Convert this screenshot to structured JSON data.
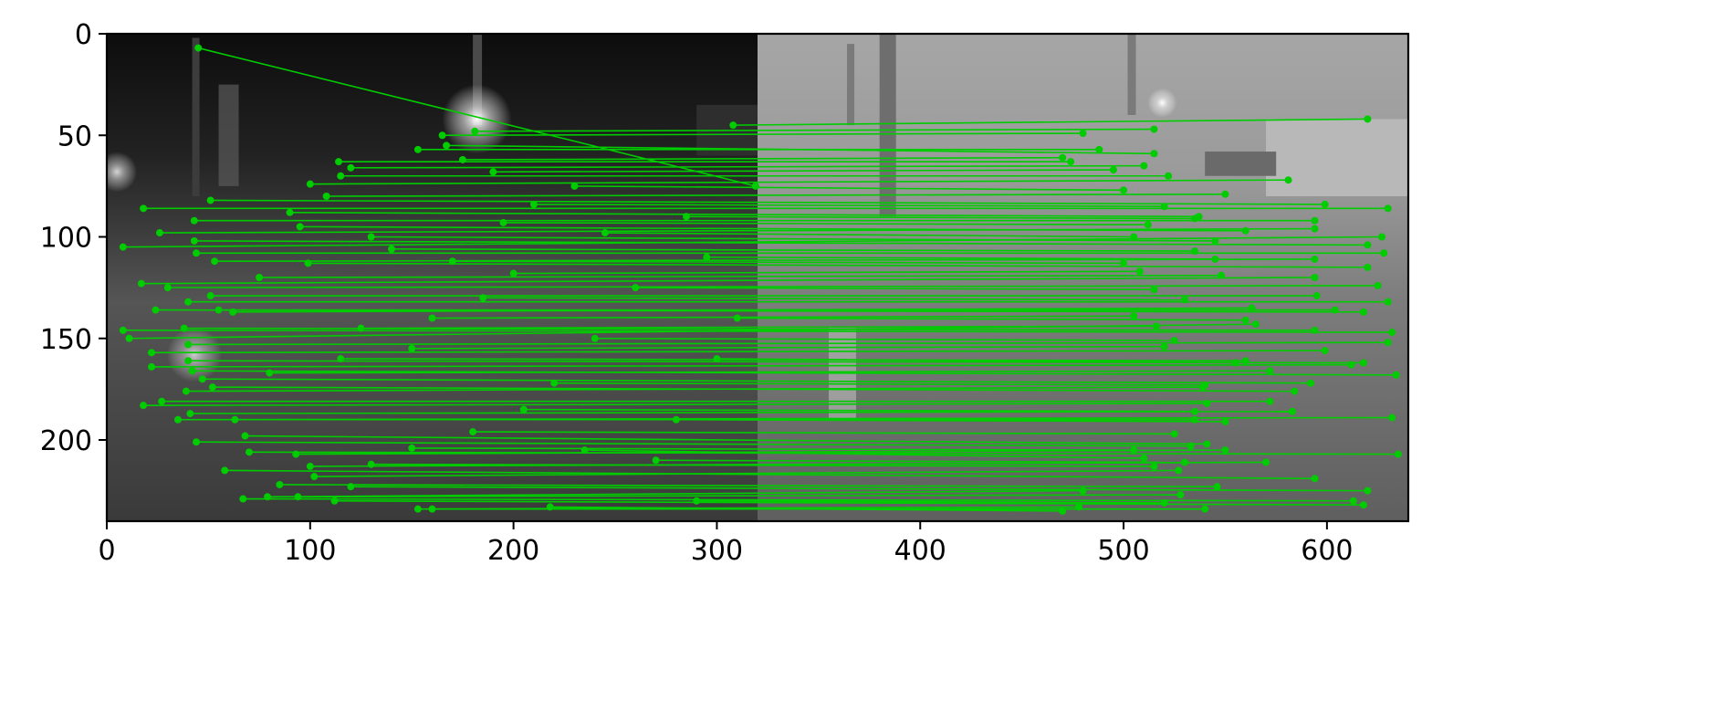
{
  "chart_data": {
    "type": "scatter",
    "title": "",
    "xlabel": "",
    "ylabel": "",
    "xlim": [
      0,
      640
    ],
    "ylim": [
      240,
      0
    ],
    "x_ticks": [
      0,
      100,
      200,
      300,
      400,
      500,
      600
    ],
    "y_ticks": [
      0,
      50,
      100,
      150,
      200
    ],
    "grid": false,
    "legend": "none",
    "background_image": {
      "description": "two grayscale construction-site photos placed side by side; left half dark night scene, right half bright daytime scene",
      "left_panel_x": [
        0,
        320
      ],
      "right_panel_x": [
        320,
        640
      ]
    },
    "match_color": "#00cc00",
    "series": [
      {
        "values": [
          {
            "x1": 45,
            "y1": 7,
            "x2": 319,
            "y2": 75
          },
          {
            "x1": 181,
            "y1": 48,
            "x2": 515,
            "y2": 47
          },
          {
            "x1": 308,
            "y1": 45,
            "x2": 620,
            "y2": 42
          },
          {
            "x1": 165,
            "y1": 50,
            "x2": 480,
            "y2": 49
          },
          {
            "x1": 153,
            "y1": 57,
            "x2": 488,
            "y2": 57
          },
          {
            "x1": 167,
            "y1": 55,
            "x2": 515,
            "y2": 59
          },
          {
            "x1": 114,
            "y1": 63,
            "x2": 474,
            "y2": 63
          },
          {
            "x1": 120,
            "y1": 66,
            "x2": 510,
            "y2": 65
          },
          {
            "x1": 115,
            "y1": 70,
            "x2": 522,
            "y2": 70
          },
          {
            "x1": 100,
            "y1": 74,
            "x2": 581,
            "y2": 72
          },
          {
            "x1": 108,
            "y1": 80,
            "x2": 550,
            "y2": 79
          },
          {
            "x1": 51,
            "y1": 82,
            "x2": 599,
            "y2": 84
          },
          {
            "x1": 18,
            "y1": 86,
            "x2": 630,
            "y2": 86
          },
          {
            "x1": 43,
            "y1": 92,
            "x2": 594,
            "y2": 92
          },
          {
            "x1": 26,
            "y1": 98,
            "x2": 594,
            "y2": 96
          },
          {
            "x1": 8,
            "y1": 105,
            "x2": 627,
            "y2": 100
          },
          {
            "x1": 43,
            "y1": 102,
            "x2": 620,
            "y2": 104
          },
          {
            "x1": 44,
            "y1": 108,
            "x2": 628,
            "y2": 108
          },
          {
            "x1": 53,
            "y1": 112,
            "x2": 594,
            "y2": 111
          },
          {
            "x1": 99,
            "y1": 113,
            "x2": 620,
            "y2": 115
          },
          {
            "x1": 17,
            "y1": 123,
            "x2": 594,
            "y2": 120
          },
          {
            "x1": 30,
            "y1": 125,
            "x2": 625,
            "y2": 124
          },
          {
            "x1": 51,
            "y1": 129,
            "x2": 595,
            "y2": 129
          },
          {
            "x1": 40,
            "y1": 132,
            "x2": 630,
            "y2": 132
          },
          {
            "x1": 24,
            "y1": 136,
            "x2": 618,
            "y2": 137
          },
          {
            "x1": 55,
            "y1": 136,
            "x2": 604,
            "y2": 136
          },
          {
            "x1": 8,
            "y1": 146,
            "x2": 632,
            "y2": 147
          },
          {
            "x1": 38,
            "y1": 145,
            "x2": 594,
            "y2": 146
          },
          {
            "x1": 11,
            "y1": 150,
            "x2": 565,
            "y2": 143
          },
          {
            "x1": 40,
            "y1": 153,
            "x2": 630,
            "y2": 152
          },
          {
            "x1": 22,
            "y1": 157,
            "x2": 599,
            "y2": 156
          },
          {
            "x1": 40,
            "y1": 161,
            "x2": 618,
            "y2": 162
          },
          {
            "x1": 22,
            "y1": 164,
            "x2": 612,
            "y2": 163
          },
          {
            "x1": 42,
            "y1": 166,
            "x2": 634,
            "y2": 168
          },
          {
            "x1": 47,
            "y1": 170,
            "x2": 592,
            "y2": 172
          },
          {
            "x1": 39,
            "y1": 176,
            "x2": 539,
            "y2": 174
          },
          {
            "x1": 52,
            "y1": 174,
            "x2": 584,
            "y2": 176
          },
          {
            "x1": 27,
            "y1": 181,
            "x2": 572,
            "y2": 181
          },
          {
            "x1": 18,
            "y1": 183,
            "x2": 541,
            "y2": 182
          },
          {
            "x1": 41,
            "y1": 187,
            "x2": 583,
            "y2": 186
          },
          {
            "x1": 35,
            "y1": 190,
            "x2": 632,
            "y2": 189
          },
          {
            "x1": 63,
            "y1": 190,
            "x2": 535,
            "y2": 190
          },
          {
            "x1": 44,
            "y1": 201,
            "x2": 533,
            "y2": 203
          },
          {
            "x1": 68,
            "y1": 198,
            "x2": 541,
            "y2": 202
          },
          {
            "x1": 70,
            "y1": 206,
            "x2": 635,
            "y2": 207
          },
          {
            "x1": 93,
            "y1": 207,
            "x2": 550,
            "y2": 205
          },
          {
            "x1": 100,
            "y1": 213,
            "x2": 570,
            "y2": 211
          },
          {
            "x1": 58,
            "y1": 215,
            "x2": 594,
            "y2": 219
          },
          {
            "x1": 102,
            "y1": 218,
            "x2": 527,
            "y2": 215
          },
          {
            "x1": 85,
            "y1": 222,
            "x2": 546,
            "y2": 223
          },
          {
            "x1": 120,
            "y1": 223,
            "x2": 620,
            "y2": 225
          },
          {
            "x1": 67,
            "y1": 229,
            "x2": 613,
            "y2": 230
          },
          {
            "x1": 79,
            "y1": 228,
            "x2": 480,
            "y2": 225
          },
          {
            "x1": 94,
            "y1": 228,
            "x2": 528,
            "y2": 227
          },
          {
            "x1": 112,
            "y1": 230,
            "x2": 618,
            "y2": 232
          },
          {
            "x1": 153,
            "y1": 234,
            "x2": 478,
            "y2": 233
          },
          {
            "x1": 160,
            "y1": 234,
            "x2": 540,
            "y2": 234
          },
          {
            "x1": 218,
            "y1": 233,
            "x2": 470,
            "y2": 235
          },
          {
            "x1": 62,
            "y1": 137,
            "x2": 563,
            "y2": 135
          },
          {
            "x1": 75,
            "y1": 120,
            "x2": 548,
            "y2": 119
          },
          {
            "x1": 90,
            "y1": 88,
            "x2": 537,
            "y2": 90
          },
          {
            "x1": 95,
            "y1": 95,
            "x2": 560,
            "y2": 97
          },
          {
            "x1": 130,
            "y1": 100,
            "x2": 545,
            "y2": 102
          },
          {
            "x1": 140,
            "y1": 106,
            "x2": 535,
            "y2": 107
          },
          {
            "x1": 80,
            "y1": 167,
            "x2": 572,
            "y2": 166
          },
          {
            "x1": 115,
            "y1": 160,
            "x2": 560,
            "y2": 161
          },
          {
            "x1": 150,
            "y1": 155,
            "x2": 520,
            "y2": 154
          },
          {
            "x1": 125,
            "y1": 145,
            "x2": 516,
            "y2": 144
          },
          {
            "x1": 160,
            "y1": 140,
            "x2": 505,
            "y2": 139
          },
          {
            "x1": 185,
            "y1": 130,
            "x2": 530,
            "y2": 131
          },
          {
            "x1": 200,
            "y1": 118,
            "x2": 508,
            "y2": 117
          },
          {
            "x1": 170,
            "y1": 112,
            "x2": 500,
            "y2": 113
          },
          {
            "x1": 195,
            "y1": 93,
            "x2": 512,
            "y2": 94
          },
          {
            "x1": 210,
            "y1": 84,
            "x2": 520,
            "y2": 85
          },
          {
            "x1": 175,
            "y1": 62,
            "x2": 470,
            "y2": 61
          },
          {
            "x1": 190,
            "y1": 68,
            "x2": 495,
            "y2": 67
          },
          {
            "x1": 230,
            "y1": 75,
            "x2": 500,
            "y2": 77
          },
          {
            "x1": 245,
            "y1": 98,
            "x2": 505,
            "y2": 100
          },
          {
            "x1": 260,
            "y1": 125,
            "x2": 515,
            "y2": 126
          },
          {
            "x1": 240,
            "y1": 150,
            "x2": 525,
            "y2": 151
          },
          {
            "x1": 220,
            "y1": 172,
            "x2": 540,
            "y2": 173
          },
          {
            "x1": 205,
            "y1": 185,
            "x2": 535,
            "y2": 186
          },
          {
            "x1": 180,
            "y1": 196,
            "x2": 525,
            "y2": 197
          },
          {
            "x1": 150,
            "y1": 204,
            "x2": 505,
            "y2": 205
          },
          {
            "x1": 130,
            "y1": 212,
            "x2": 515,
            "y2": 213
          },
          {
            "x1": 235,
            "y1": 205,
            "x2": 510,
            "y2": 209
          },
          {
            "x1": 270,
            "y1": 210,
            "x2": 530,
            "y2": 211
          },
          {
            "x1": 290,
            "y1": 230,
            "x2": 520,
            "y2": 231
          },
          {
            "x1": 280,
            "y1": 190,
            "x2": 550,
            "y2": 191
          },
          {
            "x1": 300,
            "y1": 160,
            "x2": 555,
            "y2": 162
          },
          {
            "x1": 310,
            "y1": 140,
            "x2": 560,
            "y2": 141
          },
          {
            "x1": 295,
            "y1": 110,
            "x2": 545,
            "y2": 111
          },
          {
            "x1": 285,
            "y1": 90,
            "x2": 535,
            "y2": 91
          }
        ]
      }
    ]
  }
}
